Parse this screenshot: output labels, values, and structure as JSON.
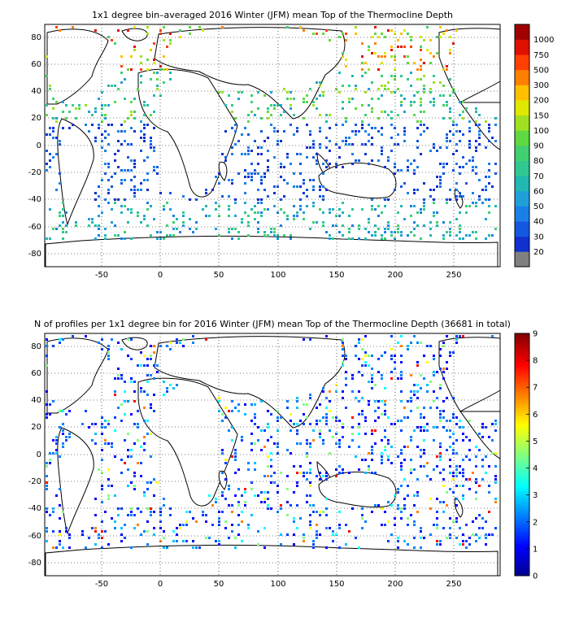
{
  "chart_data": [
    {
      "type": "heatmap",
      "title": "1x1 degree bin–averaged 2016 Winter (JFM) mean Top of the Thermocline Depth",
      "xlim": [
        -95,
        290
      ],
      "ylim": [
        -90,
        90
      ],
      "x_ticks": [
        "-50",
        "0",
        "50",
        "100",
        "150",
        "200",
        "250"
      ],
      "y_ticks": [
        "80",
        "60",
        "40",
        "20",
        "0",
        "-20",
        "-40",
        "-60",
        "-80"
      ],
      "grid": true,
      "colorbar": {
        "scale": "categorical",
        "labels": [
          "20",
          "30",
          "40",
          "50",
          "60",
          "70",
          "80",
          "90",
          "100",
          "150",
          "200",
          "300",
          "500",
          "750",
          "1000"
        ],
        "colors": [
          "#808080",
          "#1030d0",
          "#1458e0",
          "#1a80e8",
          "#20a0d8",
          "#20b8b0",
          "#30c890",
          "#40d070",
          "#60d840",
          "#a0e020",
          "#e0e800",
          "#ffc000",
          "#ff8000",
          "#ff4000",
          "#e01000",
          "#a00000"
        ]
      }
    },
    {
      "type": "heatmap",
      "title": "N of profiles per 1x1 degree bin for 2016 Winter (JFM) mean Top of the Thermocline Depth  (36681 in total)",
      "xlim": [
        -95,
        290
      ],
      "ylim": [
        -90,
        90
      ],
      "x_ticks": [
        "-50",
        "0",
        "50",
        "100",
        "150",
        "200",
        "250"
      ],
      "y_ticks": [
        "80",
        "60",
        "40",
        "20",
        "0",
        "-20",
        "-40",
        "-60",
        "-80"
      ],
      "grid": true,
      "colorbar": {
        "scale": "linear",
        "range": [
          0,
          9
        ],
        "labels": [
          "0",
          "1",
          "2",
          "3",
          "4",
          "5",
          "6",
          "7",
          "8",
          "9"
        ],
        "colors": [
          "#00008f",
          "#0000ff",
          "#0080ff",
          "#00ffff",
          "#80ff80",
          "#ffff00",
          "#ff8000",
          "#ff0000",
          "#800000"
        ]
      }
    }
  ]
}
